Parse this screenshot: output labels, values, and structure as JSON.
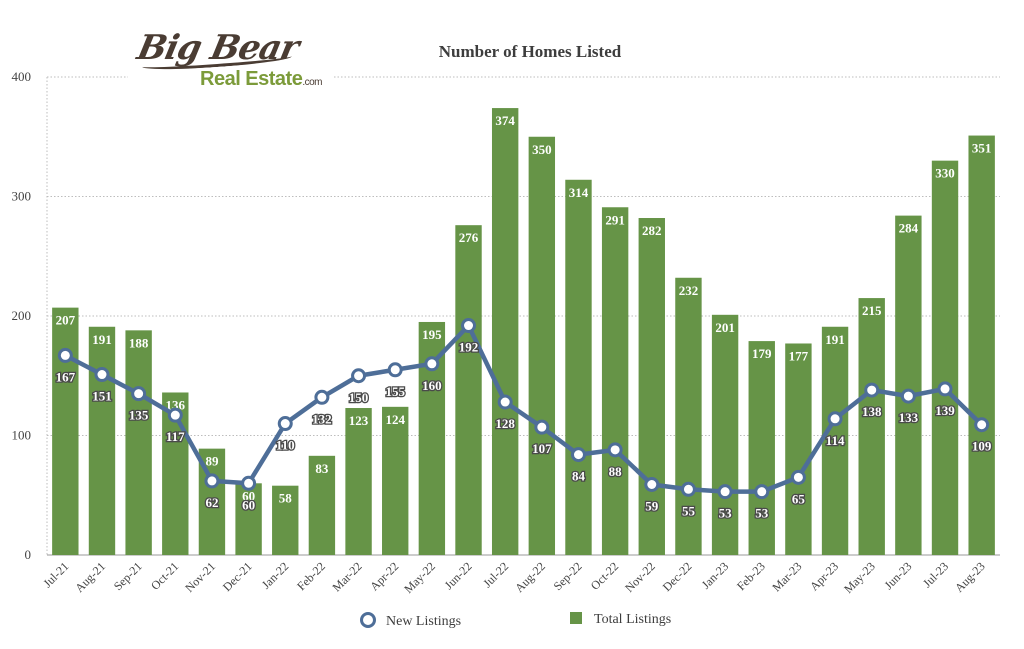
{
  "logo": {
    "big": "Big Bear",
    "sub": "Real Estate",
    "com": ".com"
  },
  "chart_data": {
    "type": "bar",
    "title": "Number of Homes Listed",
    "categories": [
      "Jul-21",
      "Aug-21",
      "Sep-21",
      "Oct-21",
      "Nov-21",
      "Dec-21",
      "Jan-22",
      "Feb-22",
      "Mar-22",
      "Apr-22",
      "May-22",
      "Jun-22",
      "Jul-22",
      "Aug-22",
      "Sep-22",
      "Oct-22",
      "Nov-22",
      "Dec-22",
      "Jan-23",
      "Feb-23",
      "Mar-23",
      "Apr-23",
      "May-23",
      "Jun-23",
      "Jul-23",
      "Aug-23"
    ],
    "series": [
      {
        "name": "Total Listings",
        "type": "bar",
        "color": "#669447",
        "values": [
          207,
          191,
          188,
          136,
          89,
          60,
          58,
          83,
          123,
          124,
          195,
          276,
          374,
          350,
          314,
          291,
          282,
          232,
          201,
          179,
          177,
          191,
          215,
          284,
          330,
          351
        ]
      },
      {
        "name": "New Listings",
        "type": "line",
        "color": "#4e6e98",
        "values": [
          167,
          151,
          135,
          117,
          62,
          60,
          110,
          132,
          150,
          155,
          160,
          192,
          128,
          107,
          84,
          88,
          59,
          55,
          53,
          53,
          65,
          114,
          138,
          133,
          139,
          109
        ]
      }
    ],
    "ylim": [
      0,
      400
    ],
    "yticks": [
      0,
      100,
      200,
      300,
      400
    ],
    "grid": true,
    "legend": "bottom"
  }
}
